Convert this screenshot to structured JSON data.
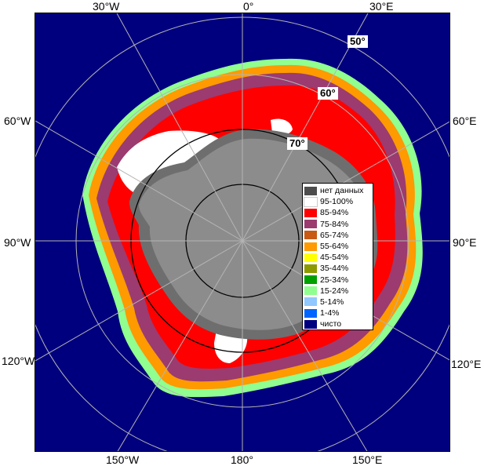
{
  "map": {
    "lon_labels": {
      "top": [
        "30°W",
        "0°",
        "30°E"
      ],
      "left": [
        "60°W",
        "90°W",
        "120°W"
      ],
      "right": [
        "60°E",
        "90°E",
        "120°E"
      ],
      "bottom": [
        "150°W",
        "180°",
        "150°E"
      ]
    },
    "lat_labels": [
      "50°",
      "60°",
      "70°"
    ],
    "legend": [
      {
        "label": "нет данных",
        "color": "#4d4d4d"
      },
      {
        "label": "95-100%",
        "color": "#ffffff"
      },
      {
        "label": "85-94%",
        "color": "#ff0000"
      },
      {
        "label": "75-84%",
        "color": "#9b3b70"
      },
      {
        "label": "65-74%",
        "color": "#c85a14"
      },
      {
        "label": "55-64%",
        "color": "#ff9a00"
      },
      {
        "label": "45-54%",
        "color": "#ffff00"
      },
      {
        "label": "35-44%",
        "color": "#8c9a00"
      },
      {
        "label": "25-34%",
        "color": "#00a000"
      },
      {
        "label": "15-24%",
        "color": "#90ff90"
      },
      {
        "label": "5-14%",
        "color": "#90c8ff"
      },
      {
        "label": "1-4%",
        "color": "#0064ff"
      },
      {
        "label": "чисто",
        "color": "#00007e"
      }
    ],
    "colors": {
      "ocean": "#00007e",
      "land": "#8c8c8c",
      "land_dark": "#6e6e6e",
      "grid": "#b4b4b4"
    }
  }
}
